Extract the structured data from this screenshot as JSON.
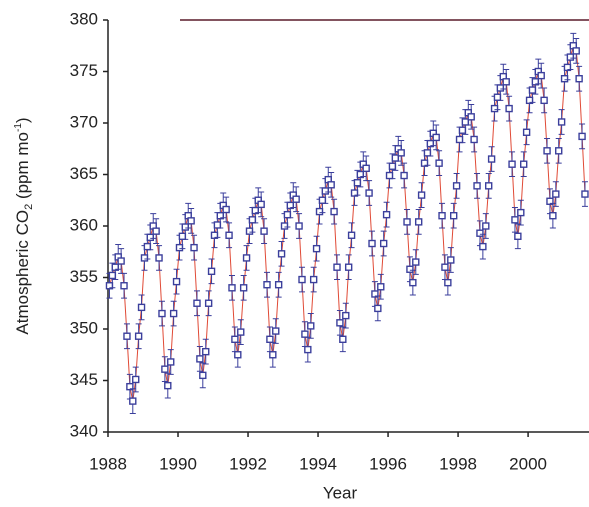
{
  "chart_data": {
    "type": "line",
    "x_label": "Year",
    "y_label": [
      "Atmospheric CO",
      "2",
      " (ppm mo",
      "-1",
      ")"
    ],
    "xlim": [
      1988,
      2001.74
    ],
    "xticks": [
      1988,
      1990,
      1992,
      1994,
      1996,
      1998,
      2000
    ],
    "ylim": [
      340,
      380
    ],
    "yticks": [
      340,
      345,
      350,
      355,
      360,
      365,
      370,
      375,
      380
    ],
    "grid": false,
    "series": [
      {
        "color": "#3b3f9c",
        "line_color": "#e04a36",
        "error": 1.2,
        "x": [
          1988.042,
          1988.125,
          1988.208,
          1988.292,
          1988.375,
          1988.458,
          1988.542,
          1988.625,
          1988.708,
          1988.792,
          1988.875,
          1988.958,
          1989.042,
          1989.125,
          1989.208,
          1989.292,
          1989.375,
          1989.458,
          1989.542,
          1989.625,
          1989.708,
          1989.792,
          1989.875,
          1989.958,
          1990.042,
          1990.125,
          1990.208,
          1990.292,
          1990.375,
          1990.458,
          1990.542,
          1990.625,
          1990.708,
          1990.792,
          1990.875,
          1990.958,
          1991.042,
          1991.125,
          1991.208,
          1991.292,
          1991.375,
          1991.458,
          1991.542,
          1991.625,
          1991.708,
          1991.792,
          1991.875,
          1991.958,
          1992.042,
          1992.125,
          1992.208,
          1992.292,
          1992.375,
          1992.458,
          1992.542,
          1992.625,
          1992.708,
          1992.792,
          1992.875,
          1992.958,
          1993.042,
          1993.125,
          1993.208,
          1993.292,
          1993.375,
          1993.458,
          1993.542,
          1993.625,
          1993.708,
          1993.792,
          1993.875,
          1993.958,
          1994.042,
          1994.125,
          1994.208,
          1994.292,
          1994.375,
          1994.458,
          1994.542,
          1994.625,
          1994.708,
          1994.792,
          1994.875,
          1994.958,
          1995.042,
          1995.125,
          1995.208,
          1995.292,
          1995.375,
          1995.458,
          1995.542,
          1995.625,
          1995.708,
          1995.792,
          1995.875,
          1995.958,
          1996.042,
          1996.125,
          1996.208,
          1996.292,
          1996.375,
          1996.458,
          1996.542,
          1996.625,
          1996.708,
          1996.792,
          1996.875,
          1996.958,
          1997.042,
          1997.125,
          1997.208,
          1997.292,
          1997.375,
          1997.458,
          1997.542,
          1997.625,
          1997.708,
          1997.792,
          1997.875,
          1997.958,
          1998.042,
          1998.125,
          1998.208,
          1998.292,
          1998.375,
          1998.458,
          1998.542,
          1998.625,
          1998.708,
          1998.792,
          1998.875,
          1998.958,
          1999.042,
          1999.125,
          1999.208,
          1999.292,
          1999.375,
          1999.458,
          1999.542,
          1999.625,
          1999.708,
          1999.792,
          1999.875,
          1999.958,
          2000.042,
          2000.125,
          2000.208,
          2000.292,
          2000.375,
          2000.458,
          2000.542,
          2000.625,
          2000.708,
          2000.792,
          2000.875,
          2000.958,
          2001.042,
          2001.125,
          2001.208,
          2001.292,
          2001.375,
          2001.458,
          2001.542,
          2001.625
        ],
        "values": [
          354.2,
          355.2,
          356.0,
          357.0,
          356.6,
          354.2,
          349.3,
          344.4,
          343.0,
          345.1,
          349.3,
          352.1,
          356.9,
          358.0,
          358.9,
          360.0,
          359.5,
          356.9,
          351.5,
          346.1,
          344.5,
          346.8,
          351.5,
          354.6,
          357.9,
          359.0,
          359.9,
          361.0,
          360.5,
          357.9,
          352.5,
          347.1,
          345.5,
          347.8,
          352.5,
          355.6,
          359.1,
          360.1,
          361.0,
          362.0,
          361.6,
          359.1,
          354.0,
          349.0,
          347.5,
          349.7,
          354.0,
          356.9,
          359.5,
          360.6,
          361.5,
          362.5,
          362.1,
          359.5,
          354.3,
          349.0,
          347.5,
          349.8,
          354.3,
          357.3,
          360.0,
          361.1,
          362.0,
          363.0,
          362.6,
          360.0,
          354.8,
          349.5,
          348.0,
          350.3,
          354.8,
          357.8,
          361.4,
          362.5,
          363.4,
          364.5,
          364.0,
          361.4,
          356.0,
          350.6,
          349.0,
          351.3,
          356.0,
          359.1,
          363.2,
          364.2,
          365.0,
          366.0,
          365.6,
          363.2,
          358.3,
          353.4,
          352.0,
          354.1,
          358.3,
          361.1,
          364.9,
          365.8,
          366.6,
          367.5,
          367.1,
          364.9,
          360.4,
          355.8,
          354.5,
          356.5,
          360.4,
          363.0,
          366.1,
          367.1,
          368.0,
          369.0,
          368.6,
          366.1,
          361.0,
          356.0,
          354.5,
          356.7,
          361.0,
          363.9,
          368.4,
          369.3,
          370.1,
          371.0,
          370.6,
          368.4,
          363.9,
          359.3,
          358.0,
          360.0,
          363.9,
          366.5,
          371.4,
          372.5,
          373.4,
          374.5,
          374.0,
          371.4,
          366.0,
          360.6,
          359.0,
          361.3,
          366.0,
          369.1,
          372.2,
          373.2,
          374.0,
          375.0,
          374.6,
          372.2,
          367.3,
          362.4,
          361.0,
          363.1,
          367.3,
          370.1,
          374.3,
          375.4,
          376.4,
          377.5,
          377.0,
          374.3,
          368.7,
          363.1
        ]
      }
    ]
  }
}
